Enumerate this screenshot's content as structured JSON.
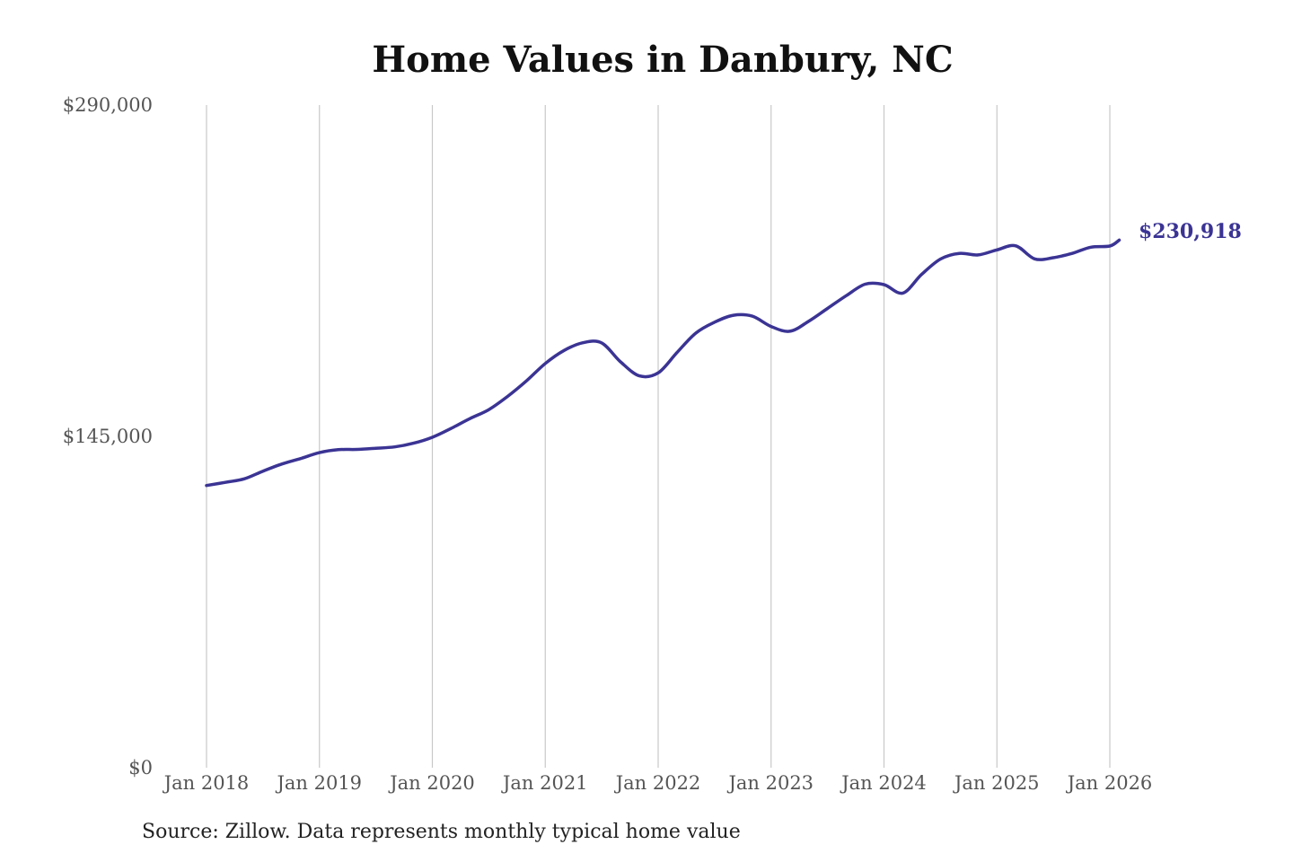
{
  "chart_data": {
    "type": "line",
    "title": "Home Values in Danbury, NC",
    "xlabel": "",
    "ylabel": "",
    "ylim": [
      0,
      290000
    ],
    "y_ticks": [
      {
        "value": 0,
        "label": "$0"
      },
      {
        "value": 145000,
        "label": "$145,000"
      },
      {
        "value": 290000,
        "label": "$290,000"
      }
    ],
    "x_ticks": [
      {
        "value": "2018-01",
        "label": "Jan 2018"
      },
      {
        "value": "2019-01",
        "label": "Jan 2019"
      },
      {
        "value": "2020-01",
        "label": "Jan 2020"
      },
      {
        "value": "2021-01",
        "label": "Jan 2021"
      },
      {
        "value": "2022-01",
        "label": "Jan 2022"
      },
      {
        "value": "2023-01",
        "label": "Jan 2023"
      },
      {
        "value": "2024-01",
        "label": "Jan 2024"
      },
      {
        "value": "2025-01",
        "label": "Jan 2025"
      },
      {
        "value": "2026-01",
        "label": "Jan 2026"
      }
    ],
    "grid": {
      "vertical": true,
      "horizontal": false
    },
    "series_color": "#3b3494",
    "end_label": "$230,918",
    "series": [
      {
        "points": [
          [
            "2018-01",
            123500
          ],
          [
            "2018-03",
            124900
          ],
          [
            "2018-05",
            126400
          ],
          [
            "2018-07",
            129800
          ],
          [
            "2018-09",
            132900
          ],
          [
            "2018-11",
            135300
          ],
          [
            "2019-01",
            137900
          ],
          [
            "2019-03",
            139200
          ],
          [
            "2019-05",
            139300
          ],
          [
            "2019-07",
            139800
          ],
          [
            "2019-09",
            140400
          ],
          [
            "2019-11",
            142000
          ],
          [
            "2020-01",
            144600
          ],
          [
            "2020-03",
            148500
          ],
          [
            "2020-05",
            152800
          ],
          [
            "2020-07",
            156700
          ],
          [
            "2020-09",
            162500
          ],
          [
            "2020-11",
            169300
          ],
          [
            "2021-01",
            176900
          ],
          [
            "2021-03",
            182600
          ],
          [
            "2021-05",
            186000
          ],
          [
            "2021-07",
            185900
          ],
          [
            "2021-09",
            177600
          ],
          [
            "2021-11",
            171500
          ],
          [
            "2022-01",
            172800
          ],
          [
            "2022-03",
            181700
          ],
          [
            "2022-05",
            190200
          ],
          [
            "2022-07",
            195000
          ],
          [
            "2022-09",
            198000
          ],
          [
            "2022-11",
            197600
          ],
          [
            "2023-01",
            193100
          ],
          [
            "2023-03",
            191000
          ],
          [
            "2023-05",
            195400
          ],
          [
            "2023-07",
            201000
          ],
          [
            "2023-09",
            206600
          ],
          [
            "2023-11",
            211600
          ],
          [
            "2024-01",
            211400
          ],
          [
            "2024-03",
            207700
          ],
          [
            "2024-05",
            215900
          ],
          [
            "2024-07",
            222600
          ],
          [
            "2024-09",
            225100
          ],
          [
            "2024-11",
            224400
          ],
          [
            "2025-01",
            226600
          ],
          [
            "2025-03",
            228400
          ],
          [
            "2025-05",
            222700
          ],
          [
            "2025-07",
            223200
          ],
          [
            "2025-09",
            225100
          ],
          [
            "2025-11",
            227800
          ],
          [
            "2026-01",
            228300
          ],
          [
            "2026-02",
            230918
          ]
        ]
      }
    ]
  },
  "footer": {
    "source": "Source: Zillow. Data represents monthly typical home value"
  }
}
